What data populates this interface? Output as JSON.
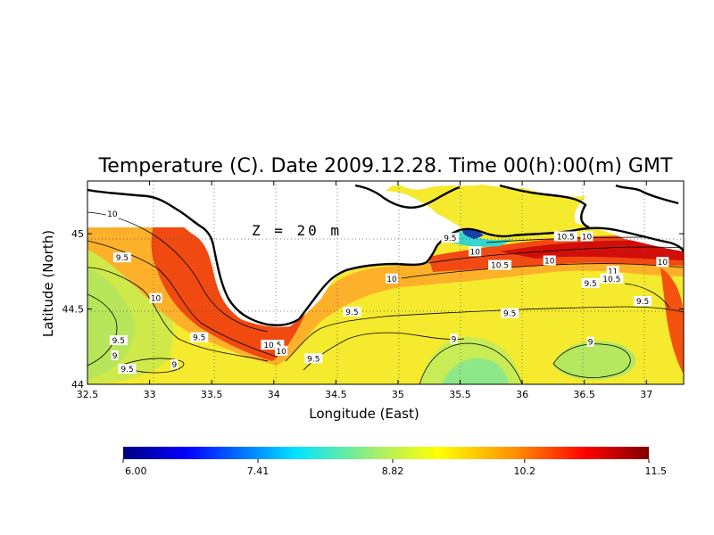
{
  "chart_data": {
    "type": "heatmap",
    "title": "Temperature (C). Date 2009.12.28. Time 00(h):00(m) GMT",
    "xlabel": "Longitude (East)",
    "ylabel": "Latitude (North)",
    "annotation": "Z = 20 m",
    "xlim": [
      32.5,
      37.3
    ],
    "ylim": [
      44.0,
      45.35
    ],
    "x_ticks": [
      "32.5",
      "33",
      "33.5",
      "34",
      "34.5",
      "35",
      "35.5",
      "36",
      "36.5",
      "37"
    ],
    "x_tick_values": [
      32.5,
      33,
      33.5,
      34,
      34.5,
      35,
      35.5,
      36,
      36.5,
      37
    ],
    "y_ticks": [
      "44",
      "44.5",
      "45"
    ],
    "y_tick_values": [
      44,
      44.5,
      45
    ],
    "grid": true,
    "colorbar": {
      "min": 6.0,
      "max": 11.5,
      "tick_labels": [
        "6.00",
        "7.41",
        "8.82",
        "10.2",
        "11.5"
      ],
      "tick_values": [
        6.0,
        7.41,
        8.82,
        10.2,
        11.5
      ]
    },
    "contour_labels": [
      {
        "text": "10",
        "x": 32.7,
        "y": 45.13
      },
      {
        "text": "9.5",
        "x": 32.78,
        "y": 44.84
      },
      {
        "text": "10",
        "x": 33.05,
        "y": 44.57
      },
      {
        "text": "9.5",
        "x": 32.75,
        "y": 44.29
      },
      {
        "text": "9",
        "x": 32.72,
        "y": 44.19
      },
      {
        "text": "9.5",
        "x": 32.82,
        "y": 44.1
      },
      {
        "text": "9",
        "x": 33.2,
        "y": 44.13
      },
      {
        "text": "9.5",
        "x": 33.4,
        "y": 44.31
      },
      {
        "text": "10.5",
        "x": 33.99,
        "y": 44.26
      },
      {
        "text": "10",
        "x": 34.06,
        "y": 44.22
      },
      {
        "text": "9.5",
        "x": 34.32,
        "y": 44.17
      },
      {
        "text": "9.5",
        "x": 34.63,
        "y": 44.48
      },
      {
        "text": "10",
        "x": 34.95,
        "y": 44.7
      },
      {
        "text": "9.5",
        "x": 35.42,
        "y": 44.97
      },
      {
        "text": "10",
        "x": 35.62,
        "y": 44.88
      },
      {
        "text": "10.5",
        "x": 35.82,
        "y": 44.79
      },
      {
        "text": "10",
        "x": 36.22,
        "y": 44.82
      },
      {
        "text": "10.5",
        "x": 36.35,
        "y": 44.98
      },
      {
        "text": "10",
        "x": 36.52,
        "y": 44.98
      },
      {
        "text": "9.5",
        "x": 36.55,
        "y": 44.67
      },
      {
        "text": "11",
        "x": 36.73,
        "y": 44.75
      },
      {
        "text": "10.5",
        "x": 36.72,
        "y": 44.7
      },
      {
        "text": "10",
        "x": 37.13,
        "y": 44.81
      },
      {
        "text": "9.5",
        "x": 36.97,
        "y": 44.55
      },
      {
        "text": "9.5",
        "x": 35.9,
        "y": 44.47
      },
      {
        "text": "9",
        "x": 35.45,
        "y": 44.3
      },
      {
        "text": "9",
        "x": 36.55,
        "y": 44.28
      }
    ]
  }
}
